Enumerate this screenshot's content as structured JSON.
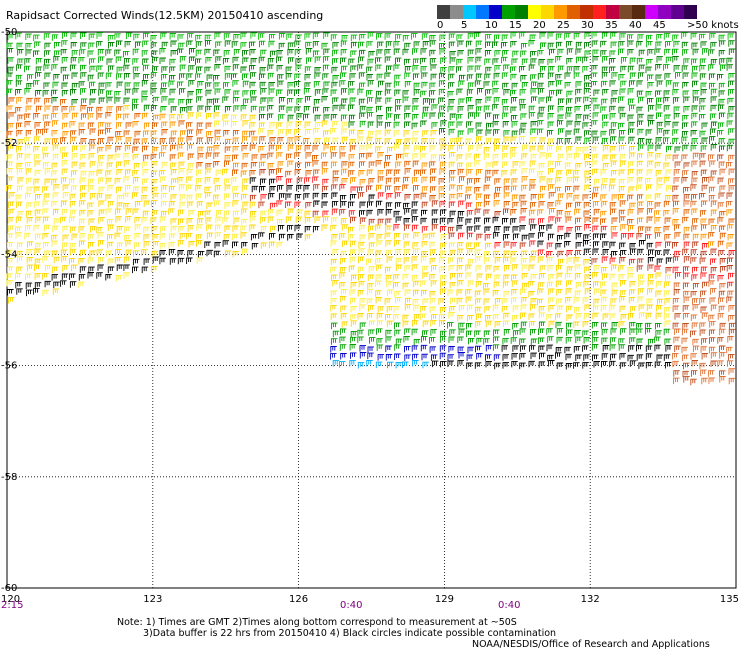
{
  "title": "Rapidsact Corrected Winds(12.5KM) 20150410 ascending",
  "legend": {
    "labels": [
      "0",
      "5",
      "10",
      "15",
      "20",
      "25",
      "30",
      "35",
      "40",
      "45",
      ">50 knots"
    ],
    "colors": [
      "#404040",
      "#8c8c8c",
      "#00c8ff",
      "#0078ff",
      "#0000c8",
      "#00a000",
      "#008000",
      "#ffff00",
      "#ffd700",
      "#ff9900",
      "#e06000",
      "#c03000",
      "#ff2020",
      "#c00040",
      "#7a4a2a",
      "#5a2a10",
      "#d000ff",
      "#9000c0",
      "#600090",
      "#300050"
    ]
  },
  "axes": {
    "x_ticks": [
      "120",
      "123",
      "126",
      "129",
      "132",
      "135"
    ],
    "y_ticks": [
      "-50",
      "-52",
      "-54",
      "-56",
      "-58",
      "-60"
    ]
  },
  "time_labels": [
    "2:15",
    "0:40",
    "0:40"
  ],
  "notes": {
    "line1": "Note: 1) Times are GMT 2)Times along bottom correspond to measurement at ~50S",
    "line2": "3)Data buffer is 22 hrs from 20150410 4) Black circles indicate possible contamination"
  },
  "credit": "NOAA/NESDIS/Office of Research and Applications"
}
